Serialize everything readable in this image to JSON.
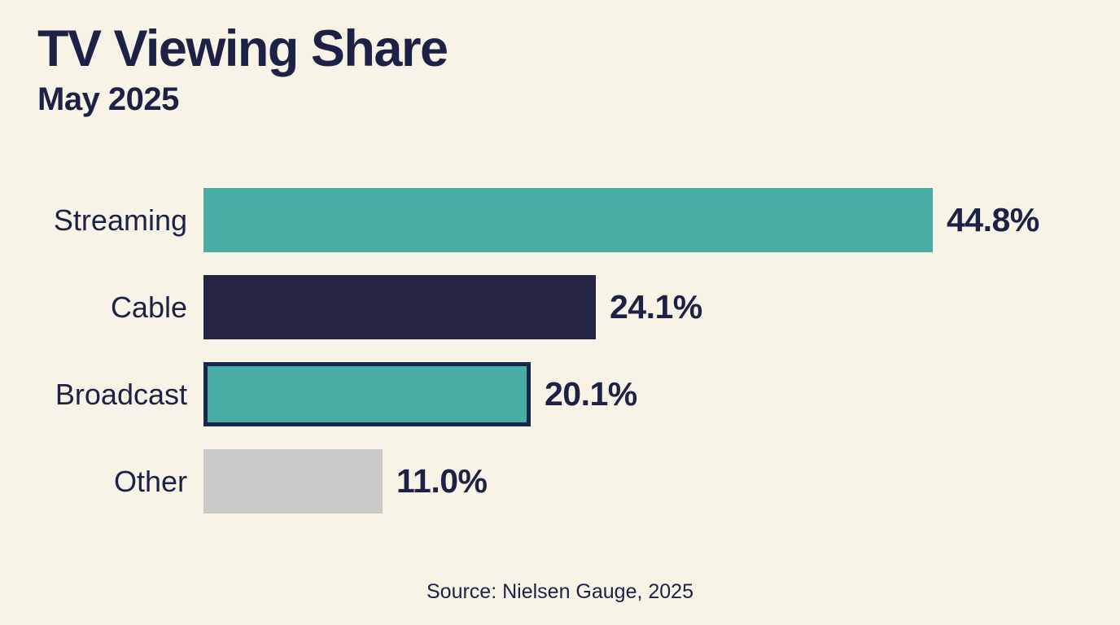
{
  "page": {
    "background_color": "#f7f3e6",
    "text_color": "#1d2145"
  },
  "header": {
    "title": "TV Viewing Share",
    "subtitle": "May 2025"
  },
  "footer": {
    "source": "Source: Nielsen Gauge, 2025"
  },
  "chart_data": {
    "type": "bar",
    "orientation": "horizontal",
    "title": "TV Viewing Share",
    "subtitle": "May 2025",
    "source": "Source: Nielsen Gauge, 2025",
    "categories": [
      "Streaming",
      "Cable",
      "Broadcast",
      "Other"
    ],
    "values": [
      44.8,
      24.1,
      20.1,
      11.0
    ],
    "value_labels": [
      "44.8%",
      "24.1%",
      "20.1%",
      "11.0%"
    ],
    "bar_colors": [
      "#49ada6",
      "#232543",
      "#49ada6",
      "#c9c9c9"
    ],
    "bar_border_colors": [
      null,
      null,
      "#16294d",
      null
    ],
    "xlim": [
      0,
      50
    ],
    "grid": false,
    "legend": false,
    "accent_teal": "#49ada6",
    "accent_navy": "#232543",
    "accent_gray": "#c9c9c9"
  }
}
